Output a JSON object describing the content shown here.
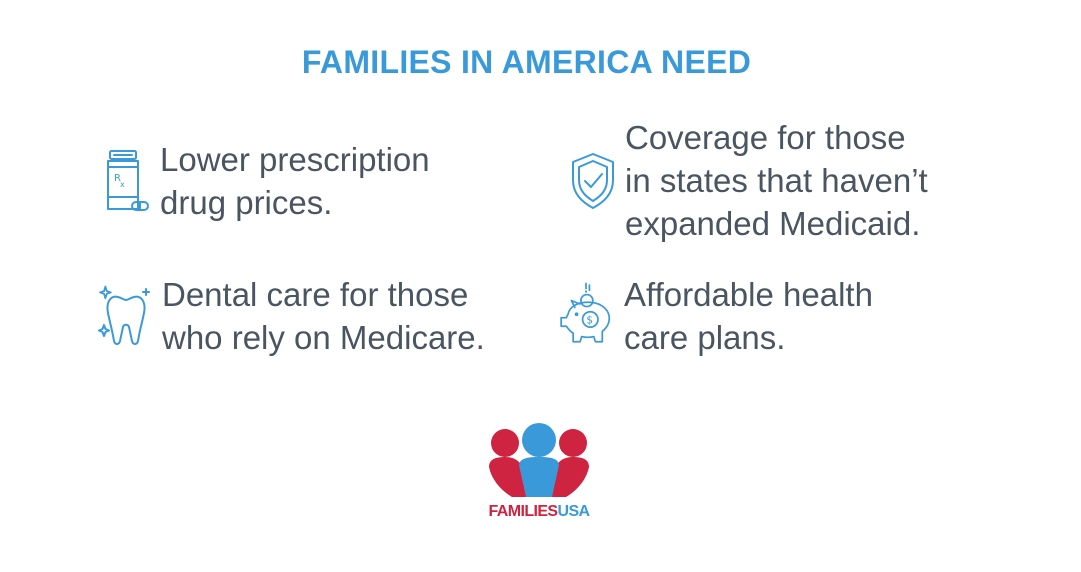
{
  "headline": "FAMILIES IN AMERICA NEED",
  "needs": [
    {
      "icon": "prescription-bottle-icon",
      "lines": [
        "Lower prescription",
        "drug prices."
      ]
    },
    {
      "icon": "shield-check-icon",
      "lines": [
        "Coverage for those",
        "in states that haven’t",
        "expanded Medicaid."
      ]
    },
    {
      "icon": "tooth-icon",
      "lines": [
        "Dental care for those",
        "who rely on Medicare."
      ]
    },
    {
      "icon": "piggy-bank-icon",
      "lines": [
        "Affordable health",
        "care plans."
      ]
    }
  ],
  "logo": {
    "word_primary": "FAMILIES",
    "word_secondary": "USA"
  },
  "colors": {
    "accent_blue": "#3a9ad9",
    "brand_red": "#cf2342",
    "text_gray": "#4a5562"
  }
}
